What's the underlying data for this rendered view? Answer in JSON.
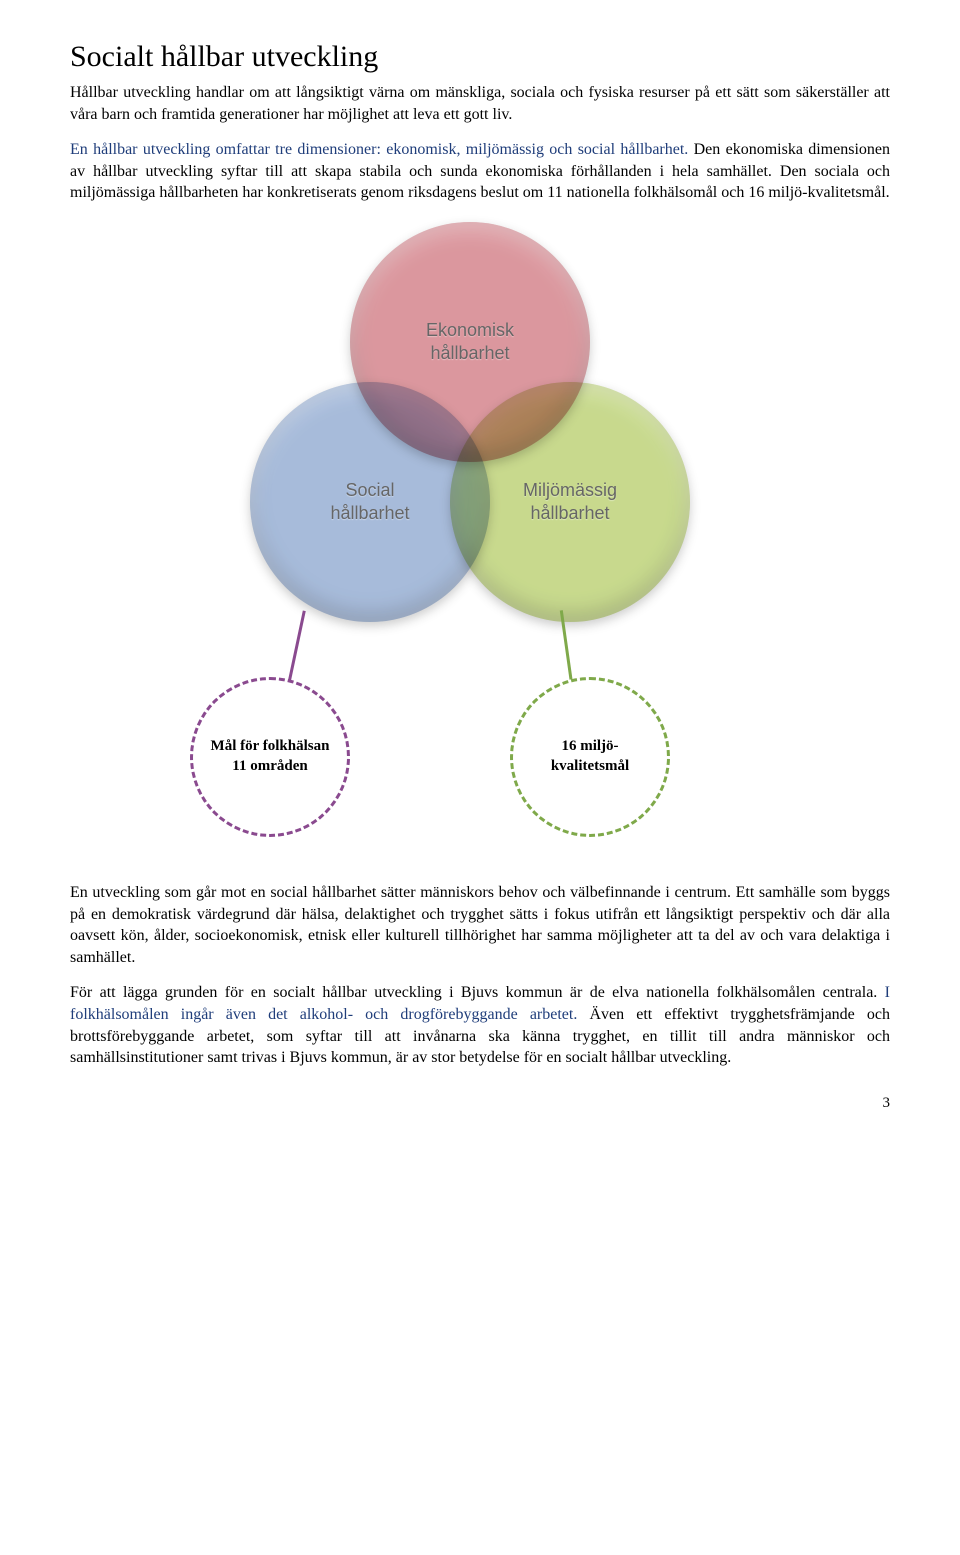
{
  "page": {
    "title": "Socialt hållbar utveckling",
    "intro": "Hållbar utveckling handlar om att långsiktigt värna om mänskliga, sociala och fysiska resurser på ett sätt som säkerställer att våra barn och framtida generationer har möjlighet att leva ett gott liv.",
    "para2_blue": "En hållbar utveckling omfattar tre dimensioner: ekonomisk, miljömässig och social hållbarhet.",
    "para2_rest": " Den ekonomiska dimensionen av hållbar utveckling syftar till att skapa stabila och sunda ekonomiska förhållanden i hela samhället. Den sociala och miljömässiga hållbarheten har konkretiserats genom riksdagens beslut om 11 nationella folkhälsomål och 16 miljö-kvalitetsmål.",
    "para3": "En utveckling som går mot en social hållbarhet sätter människors behov och välbefinnande i centrum. Ett samhälle som byggs på en demokratisk värdegrund där hälsa, delaktighet och trygghet sätts i fokus utifrån ett långsiktigt perspektiv och där alla oavsett kön, ålder, socioekonomisk, etnisk eller kulturell tillhörighet har samma möjligheter att ta del av och vara delaktiga i samhället.",
    "para4_part1": "För att lägga grunden för en socialt hållbar utveckling i Bjuvs kommun är de elva nationella folkhälsomålen centrala. ",
    "para4_blue": "I folkhälsomålen ingår även det alkohol- och drogförebyggande arbetet.",
    "para4_part2": " Även ett effektivt trygghetsfrämjande och brottsförebyggande arbetet, som syftar till att invånarna ska känna trygghet, en tillit till andra människor och samhällsinstitutioner samt trivas i Bjuvs kommun, är av stor betydelse för en socialt hållbar utveckling.",
    "page_number": "3"
  },
  "diagram": {
    "type": "venn-3",
    "circles": {
      "top": {
        "label": "Ekonomisk\nhållbarhet",
        "color": "#d17a83"
      },
      "left": {
        "label": "Social\nhållbarhet",
        "color": "#8ea8d0"
      },
      "right": {
        "label": "Miljömässig\nhållbarhet",
        "color": "#b8cf6d"
      }
    },
    "goals": {
      "left": {
        "label": "Mål för folkhälsan 11 områden",
        "border_color": "#8a4a8f",
        "connector_color": "#8a4a8f"
      },
      "right": {
        "label": "16 miljö-kvalitetsmål",
        "border_color": "#7fa94a",
        "connector_color": "#7fa94a"
      }
    },
    "blue_text_color": "#1f3d7a"
  }
}
